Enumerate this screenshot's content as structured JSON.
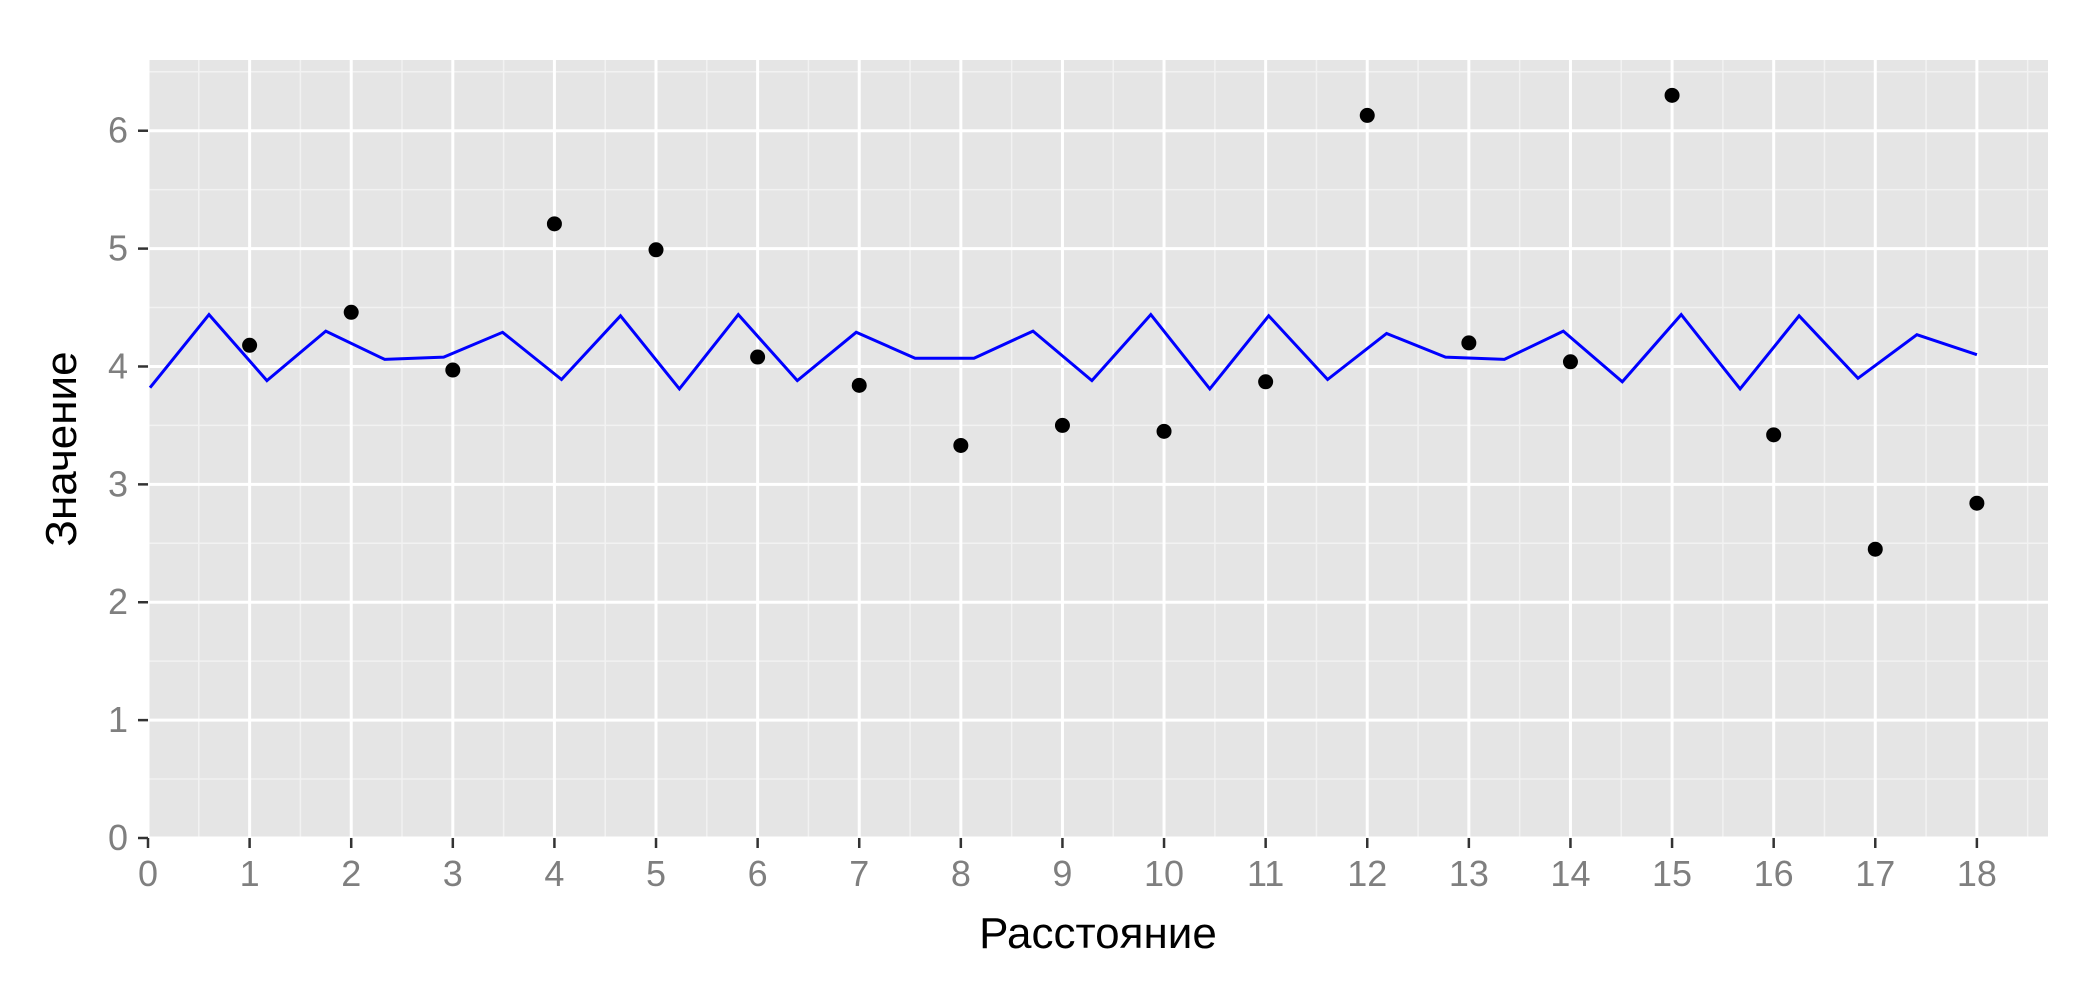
{
  "chart_data": {
    "type": "scatter",
    "title": "",
    "xlabel": "Расстояние",
    "ylabel": "Значение",
    "xlim": [
      0,
      18.7
    ],
    "ylim": [
      0,
      6.6
    ],
    "x_ticks": [
      0,
      1,
      2,
      3,
      4,
      5,
      6,
      7,
      8,
      9,
      10,
      11,
      12,
      13,
      14,
      15,
      16,
      17,
      18
    ],
    "y_ticks": [
      0,
      1,
      2,
      3,
      4,
      5,
      6
    ],
    "x_tick_labels": [
      "0",
      "1",
      "2",
      "3",
      "4",
      "5",
      "6",
      "7",
      "8",
      "9",
      "10",
      "11",
      "12",
      "13",
      "14",
      "15",
      "16",
      "17",
      "18"
    ],
    "y_tick_labels": [
      "0",
      "1",
      "2",
      "3",
      "4",
      "5",
      "6"
    ],
    "grid": true,
    "colors": {
      "panel_background": "#e5e5e5",
      "grid_major": "#ffffff",
      "grid_minor": "#f2f2f2",
      "points": "#000000",
      "line": "#0000ff",
      "tick_label": "#7f7f7f"
    },
    "series": [
      {
        "type": "scatter",
        "x": [
          1,
          2,
          3,
          4,
          5,
          6,
          7,
          8,
          9,
          10,
          11,
          12,
          13,
          14,
          15,
          16,
          17,
          18
        ],
        "y": [
          4.18,
          4.46,
          3.97,
          5.21,
          4.99,
          4.08,
          3.84,
          3.33,
          3.5,
          3.45,
          3.87,
          6.13,
          4.2,
          4.04,
          6.3,
          3.42,
          2.45,
          2.84
        ]
      },
      {
        "type": "line",
        "x": [
          0.02,
          0.6,
          1.17,
          1.75,
          2.33,
          2.91,
          3.49,
          4.07,
          4.65,
          5.23,
          5.81,
          6.39,
          6.97,
          7.55,
          8.13,
          8.71,
          9.29,
          9.87,
          10.45,
          11.03,
          11.61,
          12.19,
          12.77,
          13.35,
          13.93,
          14.51,
          15.09,
          15.67,
          16.25,
          16.83,
          17.41,
          18.0
        ],
        "y": [
          3.82,
          4.44,
          3.88,
          4.3,
          4.06,
          4.08,
          4.29,
          3.89,
          4.43,
          3.81,
          4.44,
          3.88,
          4.29,
          4.07,
          4.07,
          4.3,
          3.88,
          4.44,
          3.81,
          4.43,
          3.89,
          4.28,
          4.08,
          4.06,
          4.3,
          3.87,
          4.44,
          3.81,
          4.43,
          3.9,
          4.27,
          4.1
        ]
      }
    ]
  }
}
